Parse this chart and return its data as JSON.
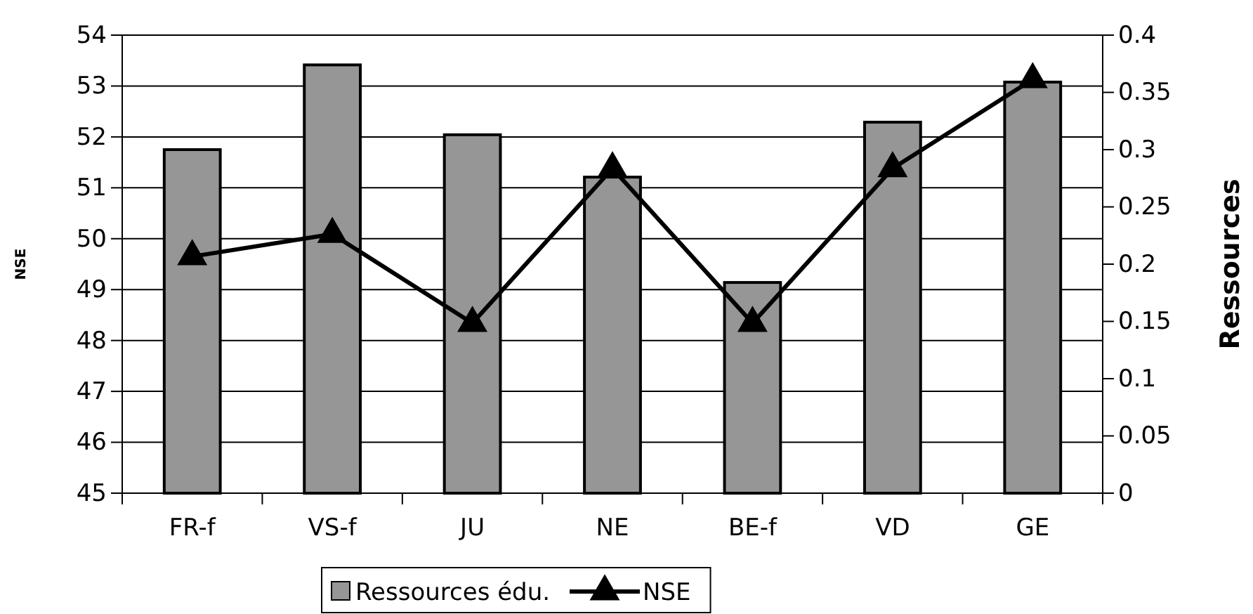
{
  "chart_data": {
    "type": "bar",
    "categories": [
      "FR-f",
      "VS-f",
      "JU",
      "NE",
      "BE-f",
      "VD",
      "GE"
    ],
    "ylabel": "NSE",
    "y2label": "Ressources",
    "ylim": [
      45,
      54
    ],
    "yticks": [
      45,
      46,
      47,
      48,
      49,
      50,
      51,
      52,
      53,
      54
    ],
    "y2lim": [
      0,
      0.4
    ],
    "y2ticks": [
      0,
      0.05,
      0.1,
      0.15,
      0.2,
      0.25,
      0.3,
      0.35,
      0.4
    ],
    "grid": "y",
    "legend": "bottom",
    "marker": "triangle",
    "line_style": "solid",
    "series": [
      {
        "name": "Ressources édu.",
        "axis": "y2",
        "color": "#969696",
        "values": [
          0.3,
          0.374,
          0.313,
          0.276,
          0.184,
          0.324,
          0.359
        ]
      },
      {
        "name": "NSE",
        "type": "line",
        "color": "#000000",
        "values": [
          49.65,
          50.09,
          48.34,
          51.38,
          48.34,
          51.38,
          53.13
        ]
      }
    ]
  }
}
